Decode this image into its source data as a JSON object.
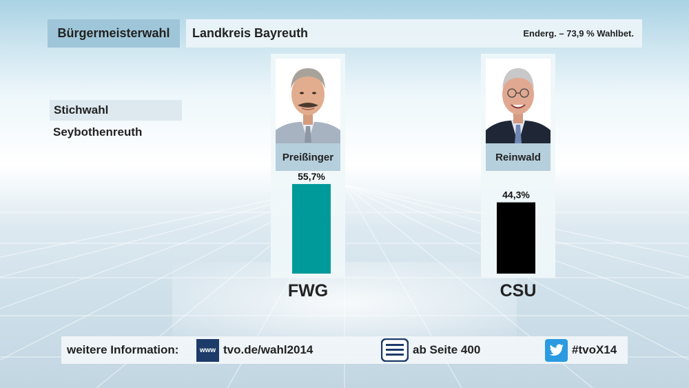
{
  "header": {
    "title": "Bürgermeisterwahl",
    "region": "Landkreis Bayreuth",
    "status": "Enderg. – 73,9 % Wahlbet."
  },
  "subheader": {
    "label": "Stichwahl",
    "place": "Seybothenreuth"
  },
  "candidates": [
    {
      "name": "Preißinger",
      "party": "FWG"
    },
    {
      "name": "Reinwald",
      "party": "CSU"
    }
  ],
  "chart_data": {
    "type": "bar",
    "categories": [
      "FWG",
      "CSU"
    ],
    "values": [
      55.7,
      44.3
    ],
    "value_labels": [
      "55,7%",
      "44,3%"
    ],
    "ylim": [
      0,
      60
    ],
    "colors": [
      "#009a9a",
      "#000000"
    ],
    "grid": false
  },
  "footer": {
    "info_label": "weitere Information:",
    "www_icon_text": "www",
    "web": "tvo.de/wahl2014",
    "teletext": "ab Seite 400",
    "twitter": "#tvoX14",
    "icons": [
      "www-icon",
      "teletext-icon",
      "twitter-icon"
    ]
  }
}
